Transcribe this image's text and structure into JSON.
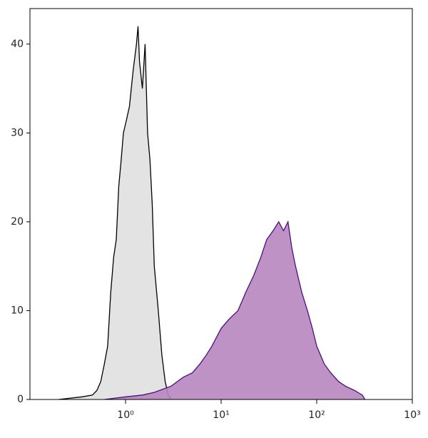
{
  "chart_data": {
    "type": "area",
    "xscale": "log",
    "xlim": [
      0.1,
      1000
    ],
    "xticks": [
      {
        "value": 1,
        "label": "10⁰"
      },
      {
        "value": 10,
        "label": "10¹"
      },
      {
        "value": 100,
        "label": "10²"
      },
      {
        "value": 1000,
        "label": "10³"
      }
    ],
    "ylim": [
      0,
      44
    ],
    "yticks": [
      0,
      10,
      20,
      30,
      40
    ],
    "series": [
      {
        "color": "#000000",
        "fill": "#e0e0e0",
        "x": [
          0.2,
          0.35,
          0.45,
          0.5,
          0.55,
          0.6,
          0.65,
          0.7,
          0.75,
          0.8,
          0.85,
          0.9,
          0.95,
          1.0,
          1.1,
          1.2,
          1.3,
          1.35,
          1.4,
          1.5,
          1.6,
          1.7,
          1.8,
          1.9,
          2.0,
          2.2,
          2.4,
          2.6,
          2.8,
          3.0
        ],
        "values": [
          0,
          0.3,
          0.5,
          1,
          2,
          4,
          6,
          12,
          16,
          18,
          24,
          27,
          30,
          31,
          33,
          37,
          40,
          42,
          38,
          35,
          40,
          30,
          27,
          22,
          15,
          10,
          5,
          2,
          0.5,
          0
        ]
      },
      {
        "color": "#4b0f80",
        "fill": "#b886c0",
        "x": [
          0.6,
          1,
          1.5,
          2,
          3,
          4,
          5,
          6,
          7,
          8,
          10,
          12,
          15,
          18,
          22,
          26,
          30,
          35,
          40,
          45,
          50,
          55,
          60,
          70,
          80,
          90,
          100,
          120,
          140,
          170,
          200,
          250,
          300,
          320
        ],
        "values": [
          0,
          0.3,
          0.5,
          0.8,
          1.5,
          2.5,
          3,
          4,
          5,
          6,
          8,
          9,
          10,
          12,
          14,
          16,
          18,
          19,
          20,
          19,
          20,
          17,
          15,
          12,
          10,
          8,
          6,
          4,
          3,
          2,
          1.5,
          1,
          0.5,
          0
        ]
      }
    ]
  }
}
